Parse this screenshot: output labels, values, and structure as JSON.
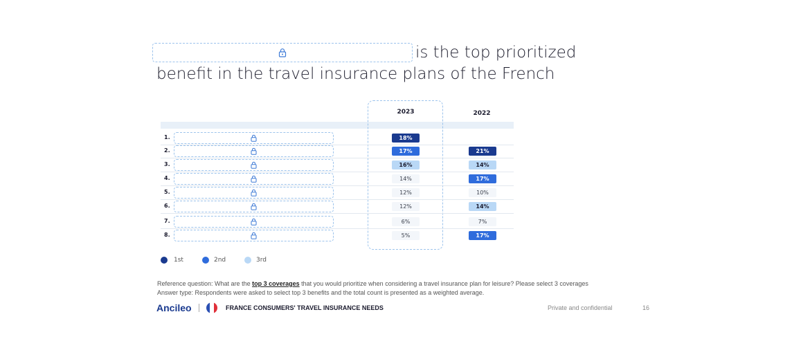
{
  "title": {
    "line1_suffix": "is the top prioritized",
    "line2": "benefit in the travel insurance plans of the French"
  },
  "table": {
    "columns": [
      "2023",
      "2022"
    ],
    "rows": [
      {
        "rank": "1.",
        "v2023": "18%",
        "t2023": "t1",
        "v2022": "",
        "t2022": ""
      },
      {
        "rank": "2.",
        "v2023": "17%",
        "t2023": "t2",
        "v2022": "21%",
        "t2022": "t1"
      },
      {
        "rank": "3.",
        "v2023": "16%",
        "t2023": "t3",
        "v2022": "14%",
        "t2022": "t3"
      },
      {
        "rank": "4.",
        "v2023": "14%",
        "t2023": "tn",
        "v2022": "17%",
        "t2022": "t2"
      },
      {
        "rank": "5.",
        "v2023": "12%",
        "t2023": "tn",
        "v2022": "10%",
        "t2022": "tn"
      },
      {
        "rank": "6.",
        "v2023": "12%",
        "t2023": "tn",
        "v2022": "14%",
        "t2022": "t3"
      },
      {
        "rank": "7.",
        "v2023": "6%",
        "t2023": "tn",
        "v2022": "7%",
        "t2022": "tn"
      },
      {
        "rank": "8.",
        "v2023": "5%",
        "t2023": "tn",
        "v2022": "17%",
        "t2022": "t2"
      }
    ]
  },
  "legend": [
    {
      "label": "1st",
      "color": "#1a3a8f"
    },
    {
      "label": "2nd",
      "color": "#2f6cdc"
    },
    {
      "label": "3rd",
      "color": "#b9d8f6"
    }
  ],
  "footnote": {
    "q_prefix": "Reference question: What are the ",
    "q_emph": "top 3 coverages",
    "q_suffix": " that you would prioritize when considering a travel insurance plan for leisure?  Please select 3 coverages",
    "answer": "Answer type: Respondents were asked to select top 3 benefits and the total count is presented as a weighted average."
  },
  "footer": {
    "brand": "Ancileo",
    "report": "FRANCE CONSUMERS' TRAVEL INSURANCE NEEDS",
    "confidential": "Private and confidential",
    "page": "16"
  }
}
